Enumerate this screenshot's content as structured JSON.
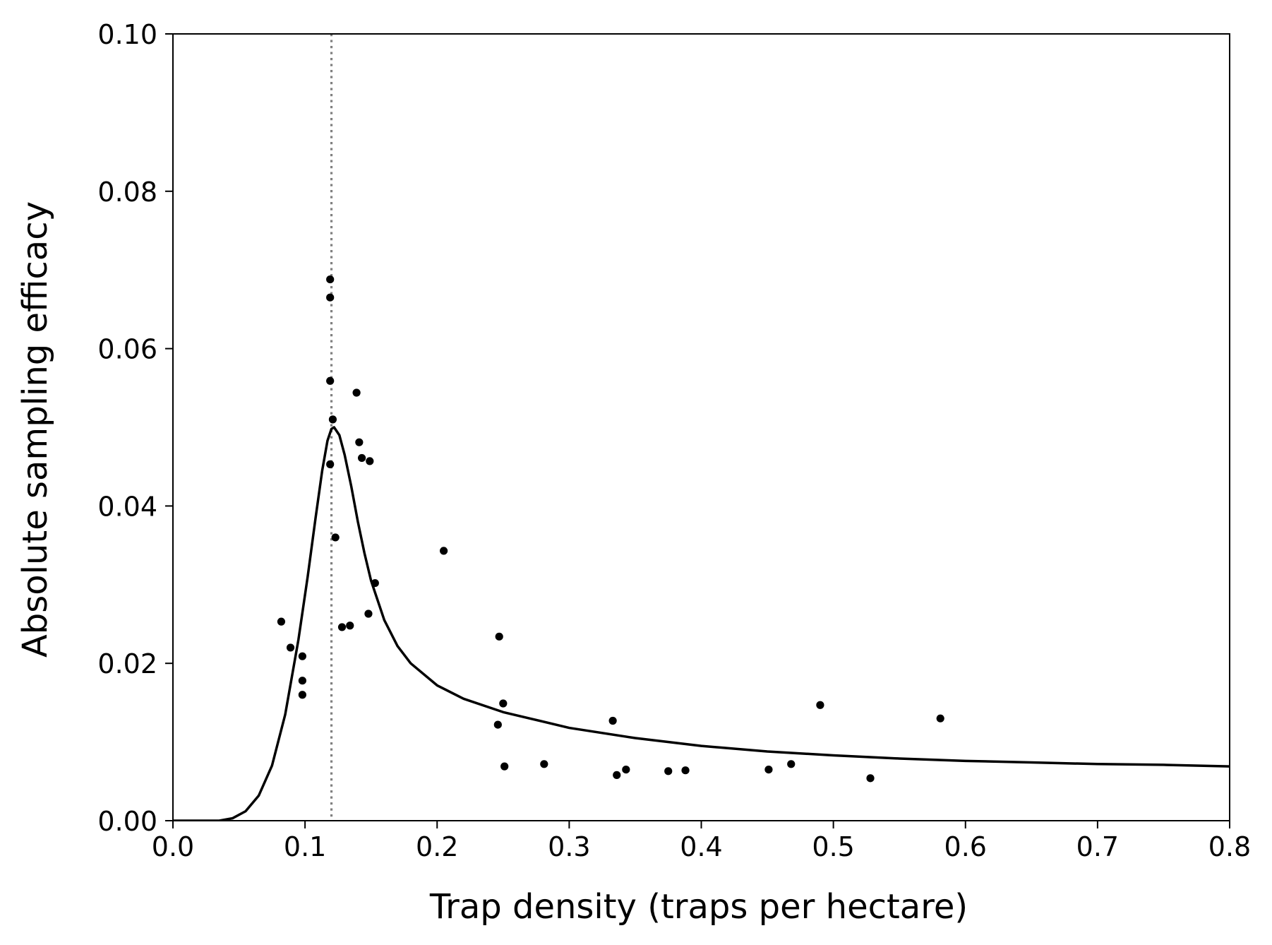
{
  "chart_data": {
    "type": "scatter",
    "title": "",
    "xlabel": "Trap density (traps per hectare)",
    "ylabel": "Absolute sampling efficacy",
    "xlim": [
      0.0,
      0.8
    ],
    "ylim": [
      0.0,
      0.1
    ],
    "x_ticks": [
      "0.0",
      "0.1",
      "0.2",
      "0.3",
      "0.4",
      "0.5",
      "0.6",
      "0.7",
      "0.8"
    ],
    "y_ticks": [
      "0.00",
      "0.02",
      "0.04",
      "0.06",
      "0.08",
      "0.10"
    ],
    "grid": false,
    "legend": "none",
    "points": [
      {
        "x": 0.082,
        "y": 0.0253
      },
      {
        "x": 0.089,
        "y": 0.022
      },
      {
        "x": 0.098,
        "y": 0.0209
      },
      {
        "x": 0.098,
        "y": 0.0178
      },
      {
        "x": 0.098,
        "y": 0.016
      },
      {
        "x": 0.119,
        "y": 0.0688
      },
      {
        "x": 0.119,
        "y": 0.0665
      },
      {
        "x": 0.119,
        "y": 0.0559
      },
      {
        "x": 0.121,
        "y": 0.051
      },
      {
        "x": 0.119,
        "y": 0.0453
      },
      {
        "x": 0.123,
        "y": 0.036
      },
      {
        "x": 0.128,
        "y": 0.0246
      },
      {
        "x": 0.134,
        "y": 0.0248
      },
      {
        "x": 0.139,
        "y": 0.0544
      },
      {
        "x": 0.141,
        "y": 0.0481
      },
      {
        "x": 0.143,
        "y": 0.0461
      },
      {
        "x": 0.149,
        "y": 0.0457
      },
      {
        "x": 0.148,
        "y": 0.0263
      },
      {
        "x": 0.153,
        "y": 0.0302
      },
      {
        "x": 0.205,
        "y": 0.0343
      },
      {
        "x": 0.247,
        "y": 0.0234
      },
      {
        "x": 0.246,
        "y": 0.0122
      },
      {
        "x": 0.25,
        "y": 0.0149
      },
      {
        "x": 0.251,
        "y": 0.0069
      },
      {
        "x": 0.281,
        "y": 0.0072
      },
      {
        "x": 0.333,
        "y": 0.0127
      },
      {
        "x": 0.336,
        "y": 0.0058
      },
      {
        "x": 0.343,
        "y": 0.0065
      },
      {
        "x": 0.375,
        "y": 0.0063
      },
      {
        "x": 0.388,
        "y": 0.0064
      },
      {
        "x": 0.451,
        "y": 0.0065
      },
      {
        "x": 0.468,
        "y": 0.0072
      },
      {
        "x": 0.49,
        "y": 0.0147
      },
      {
        "x": 0.528,
        "y": 0.0054
      },
      {
        "x": 0.581,
        "y": 0.013
      }
    ],
    "fitted_curve": [
      {
        "x": 0.0,
        "y": 0.0
      },
      {
        "x": 0.02,
        "y": 0.0
      },
      {
        "x": 0.035,
        "y": 0.0
      },
      {
        "x": 0.045,
        "y": 0.0003
      },
      {
        "x": 0.055,
        "y": 0.0012
      },
      {
        "x": 0.065,
        "y": 0.0032
      },
      {
        "x": 0.075,
        "y": 0.007
      },
      {
        "x": 0.085,
        "y": 0.0135
      },
      {
        "x": 0.095,
        "y": 0.023
      },
      {
        "x": 0.102,
        "y": 0.031
      },
      {
        "x": 0.108,
        "y": 0.0385
      },
      {
        "x": 0.113,
        "y": 0.0445
      },
      {
        "x": 0.117,
        "y": 0.0483
      },
      {
        "x": 0.12,
        "y": 0.0498
      },
      {
        "x": 0.122,
        "y": 0.05
      },
      {
        "x": 0.126,
        "y": 0.049
      },
      {
        "x": 0.13,
        "y": 0.0465
      },
      {
        "x": 0.135,
        "y": 0.0425
      },
      {
        "x": 0.14,
        "y": 0.038
      },
      {
        "x": 0.145,
        "y": 0.034
      },
      {
        "x": 0.15,
        "y": 0.0305
      },
      {
        "x": 0.16,
        "y": 0.0255
      },
      {
        "x": 0.17,
        "y": 0.0222
      },
      {
        "x": 0.18,
        "y": 0.02
      },
      {
        "x": 0.2,
        "y": 0.0172
      },
      {
        "x": 0.22,
        "y": 0.0155
      },
      {
        "x": 0.25,
        "y": 0.0138
      },
      {
        "x": 0.3,
        "y": 0.0118
      },
      {
        "x": 0.35,
        "y": 0.0105
      },
      {
        "x": 0.4,
        "y": 0.0095
      },
      {
        "x": 0.45,
        "y": 0.0088
      },
      {
        "x": 0.5,
        "y": 0.0083
      },
      {
        "x": 0.55,
        "y": 0.0079
      },
      {
        "x": 0.6,
        "y": 0.0076
      },
      {
        "x": 0.65,
        "y": 0.0074
      },
      {
        "x": 0.7,
        "y": 0.0072
      },
      {
        "x": 0.75,
        "y": 0.0071
      },
      {
        "x": 0.8,
        "y": 0.0069
      }
    ],
    "reference_line": {
      "x": 0.12,
      "style": "dotted",
      "color": "#808080"
    },
    "colors": {
      "points": "#000000",
      "curve": "#000000",
      "reference": "#808080"
    }
  }
}
